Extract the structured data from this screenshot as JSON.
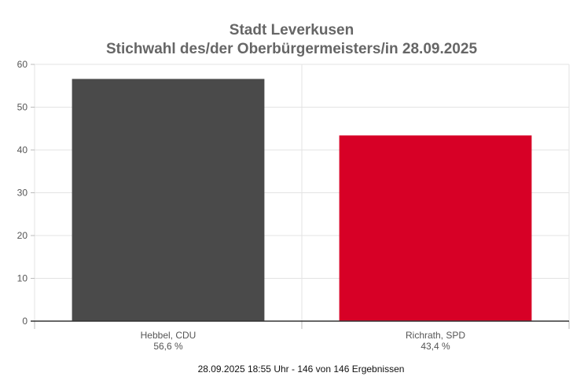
{
  "chart_data": {
    "type": "bar",
    "title": "Stadt Leverkusen",
    "subtitle": "Stichwahl des/der Oberbürgermeisters/in 28.09.2025",
    "categories": [
      "Hebbel, CDU",
      "Richrath, SPD"
    ],
    "value_labels": [
      "56,6 %",
      "43,4 %"
    ],
    "values": [
      56.6,
      43.4
    ],
    "colors": [
      "#4a4a4a",
      "#d70026"
    ],
    "ylim": [
      0,
      60
    ],
    "yticks": [
      0,
      10,
      20,
      30,
      40,
      50,
      60
    ],
    "grid": true,
    "xlabel": "",
    "ylabel": "",
    "footnote": "28.09.2025 18:55 Uhr - 146 von 146 Ergebnissen"
  }
}
